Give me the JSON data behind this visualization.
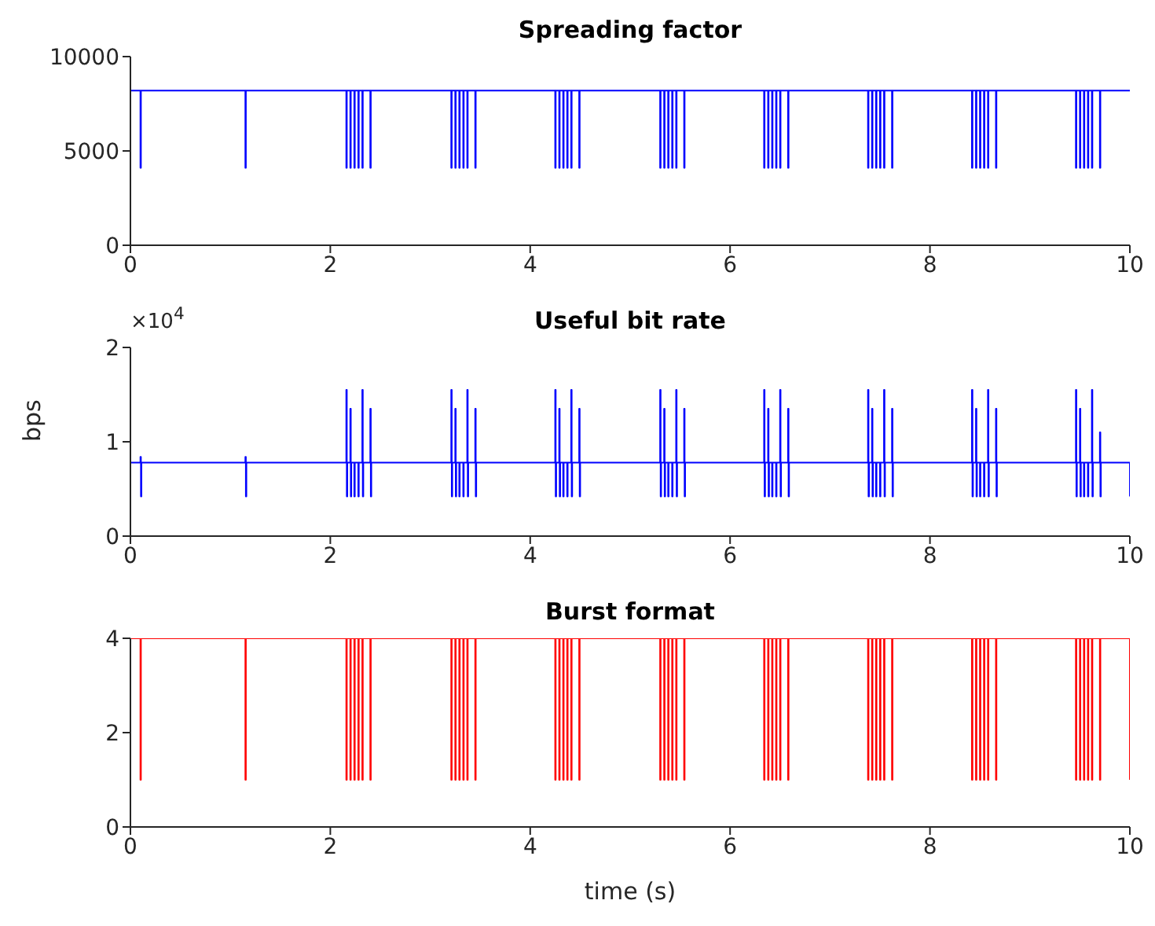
{
  "chart_data": [
    {
      "type": "step",
      "title": "Spreading factor",
      "xlim": [
        0,
        10
      ],
      "xticks": [
        0,
        2,
        4,
        6,
        8,
        10
      ],
      "ylim": [
        0,
        10000
      ],
      "yticks": [
        0,
        5000,
        10000
      ],
      "marker": "none",
      "series": [
        {
          "color": "#0000ff",
          "x": [
            0,
            0.1,
            0.105,
            1.15,
            1.155,
            2.16,
            2.165,
            2.2,
            2.205,
            2.24,
            2.245,
            2.28,
            2.285,
            2.32,
            2.325,
            2.4,
            2.405,
            3.21,
            3.215,
            3.25,
            3.255,
            3.29,
            3.295,
            3.33,
            3.335,
            3.37,
            3.375,
            3.45,
            3.455,
            4.25,
            4.255,
            4.29,
            4.295,
            4.33,
            4.335,
            4.37,
            4.375,
            4.41,
            4.415,
            4.49,
            4.495,
            5.3,
            5.305,
            5.34,
            5.345,
            5.38,
            5.385,
            5.42,
            5.425,
            5.46,
            5.465,
            5.54,
            5.545,
            6.34,
            6.345,
            6.38,
            6.385,
            6.42,
            6.425,
            6.46,
            6.465,
            6.5,
            6.505,
            6.58,
            6.585,
            7.38,
            7.385,
            7.42,
            7.425,
            7.46,
            7.465,
            7.5,
            7.505,
            7.54,
            7.545,
            7.62,
            7.625,
            8.42,
            8.425,
            8.46,
            8.465,
            8.5,
            8.505,
            8.54,
            8.545,
            8.58,
            8.585,
            8.66,
            8.665,
            9.46,
            9.465,
            9.5,
            9.505,
            9.54,
            9.545,
            9.58,
            9.585,
            9.62,
            9.625,
            9.7,
            9.705,
            10
          ],
          "values": [
            8200,
            4100,
            8200,
            4100,
            8200,
            4100,
            8200,
            4100,
            8200,
            4100,
            8200,
            4100,
            8200,
            4100,
            8200,
            4100,
            8200,
            4100,
            8200,
            4100,
            8200,
            4100,
            8200,
            4100,
            8200,
            4100,
            8200,
            4100,
            8200,
            4100,
            8200,
            4100,
            8200,
            4100,
            8200,
            4100,
            8200,
            4100,
            8200,
            4100,
            8200,
            4100,
            8200,
            4100,
            8200,
            4100,
            8200,
            4100,
            8200,
            4100,
            8200,
            4100,
            8200,
            4100,
            8200,
            4100,
            8200,
            4100,
            8200,
            4100,
            8200,
            4100,
            8200,
            4100,
            8200,
            4100,
            8200,
            4100,
            8200,
            4100,
            8200,
            4100,
            8200,
            4100,
            8200,
            4100,
            8200,
            4100,
            8200,
            4100,
            8200,
            4100,
            8200,
            4100,
            8200,
            4100,
            8200,
            4100,
            8200,
            4100,
            8200,
            4100,
            8200,
            4100,
            8200,
            4100,
            8200,
            4100,
            8200,
            4100,
            8200,
            8200
          ]
        }
      ]
    },
    {
      "type": "step",
      "title": "Useful bit rate",
      "ylabel": "bps",
      "annotations": [
        "×10$^{4}$"
      ],
      "xlim": [
        0,
        10
      ],
      "xticks": [
        0,
        2,
        4,
        6,
        8,
        10
      ],
      "ylim": [
        0,
        2
      ],
      "yticks": [
        0,
        1,
        2
      ],
      "marker": "none",
      "series": [
        {
          "color": "#0000ff",
          "x": [
            0,
            0.1,
            0.105,
            0.11,
            1.15,
            1.155,
            1.16,
            2.16,
            2.165,
            2.17,
            2.2,
            2.205,
            2.21,
            2.24,
            2.245,
            2.28,
            2.285,
            2.32,
            2.325,
            2.33,
            2.4,
            2.405,
            2.41,
            3.21,
            3.215,
            3.22,
            3.25,
            3.255,
            3.26,
            3.29,
            3.295,
            3.33,
            3.335,
            3.37,
            3.375,
            3.38,
            3.45,
            3.455,
            3.46,
            4.25,
            4.255,
            4.26,
            4.29,
            4.295,
            4.3,
            4.33,
            4.335,
            4.37,
            4.375,
            4.41,
            4.415,
            4.42,
            4.49,
            4.495,
            4.5,
            5.3,
            5.305,
            5.31,
            5.34,
            5.345,
            5.35,
            5.38,
            5.385,
            5.42,
            5.425,
            5.46,
            5.465,
            5.47,
            5.54,
            5.545,
            5.55,
            6.34,
            6.345,
            6.35,
            6.38,
            6.385,
            6.39,
            6.42,
            6.425,
            6.46,
            6.465,
            6.5,
            6.505,
            6.51,
            6.58,
            6.585,
            6.59,
            7.38,
            7.385,
            7.39,
            7.42,
            7.425,
            7.43,
            7.46,
            7.465,
            7.5,
            7.505,
            7.54,
            7.545,
            7.55,
            7.62,
            7.625,
            7.63,
            8.42,
            8.425,
            8.43,
            8.46,
            8.465,
            8.47,
            8.5,
            8.505,
            8.54,
            8.545,
            8.58,
            8.585,
            8.59,
            8.66,
            8.665,
            8.67,
            9.46,
            9.465,
            9.47,
            9.5,
            9.505,
            9.51,
            9.54,
            9.545,
            9.58,
            9.585,
            9.62,
            9.625,
            9.63,
            9.7,
            9.705,
            9.71,
            10
          ],
          "values": [
            0.78,
            0.84,
            0.42,
            0.78,
            0.84,
            0.42,
            0.78,
            1.55,
            0.42,
            0.78,
            1.35,
            0.42,
            0.78,
            0.42,
            0.78,
            0.42,
            0.78,
            1.55,
            0.42,
            0.78,
            1.35,
            0.42,
            0.78,
            1.55,
            0.42,
            0.78,
            1.35,
            0.42,
            0.78,
            0.42,
            0.78,
            0.42,
            0.78,
            1.55,
            0.42,
            0.78,
            1.35,
            0.42,
            0.78,
            1.55,
            0.42,
            0.78,
            1.35,
            0.42,
            0.78,
            0.42,
            0.78,
            0.42,
            0.78,
            1.55,
            0.42,
            0.78,
            1.35,
            0.42,
            0.78,
            1.55,
            0.42,
            0.78,
            1.35,
            0.42,
            0.78,
            0.42,
            0.78,
            0.42,
            0.78,
            1.55,
            0.42,
            0.78,
            1.35,
            0.42,
            0.78,
            1.55,
            0.42,
            0.78,
            1.35,
            0.42,
            0.78,
            0.42,
            0.78,
            0.42,
            0.78,
            1.55,
            0.42,
            0.78,
            1.35,
            0.42,
            0.78,
            1.55,
            0.42,
            0.78,
            1.35,
            0.42,
            0.78,
            0.42,
            0.78,
            0.42,
            0.78,
            1.55,
            0.42,
            0.78,
            1.35,
            0.42,
            0.78,
            1.55,
            0.42,
            0.78,
            1.35,
            0.42,
            0.78,
            0.42,
            0.78,
            0.42,
            0.78,
            1.55,
            0.42,
            0.78,
            1.35,
            0.42,
            0.78,
            1.55,
            0.42,
            0.78,
            1.35,
            0.42,
            0.78,
            0.42,
            0.78,
            0.42,
            0.78,
            1.55,
            0.42,
            0.78,
            1.1,
            0.42,
            0.78,
            0.42
          ]
        }
      ]
    },
    {
      "type": "step",
      "title": "Burst format",
      "xlabel": "time (s)",
      "xlim": [
        0,
        10
      ],
      "xticks": [
        0,
        2,
        4,
        6,
        8,
        10
      ],
      "ylim": [
        0,
        4
      ],
      "yticks": [
        0,
        2,
        4
      ],
      "marker": "none",
      "series": [
        {
          "color": "#ff0000",
          "x": [
            0,
            0.1,
            0.105,
            1.15,
            1.155,
            2.16,
            2.165,
            2.2,
            2.205,
            2.24,
            2.245,
            2.28,
            2.285,
            2.32,
            2.325,
            2.4,
            2.405,
            3.21,
            3.215,
            3.25,
            3.255,
            3.29,
            3.295,
            3.33,
            3.335,
            3.37,
            3.375,
            3.45,
            3.455,
            4.25,
            4.255,
            4.29,
            4.295,
            4.33,
            4.335,
            4.37,
            4.375,
            4.41,
            4.415,
            4.49,
            4.495,
            5.3,
            5.305,
            5.34,
            5.345,
            5.38,
            5.385,
            5.42,
            5.425,
            5.46,
            5.465,
            5.54,
            5.545,
            6.34,
            6.345,
            6.38,
            6.385,
            6.42,
            6.425,
            6.46,
            6.465,
            6.5,
            6.505,
            6.58,
            6.585,
            7.38,
            7.385,
            7.42,
            7.425,
            7.46,
            7.465,
            7.5,
            7.505,
            7.54,
            7.545,
            7.62,
            7.625,
            8.42,
            8.425,
            8.46,
            8.465,
            8.5,
            8.505,
            8.54,
            8.545,
            8.58,
            8.585,
            8.66,
            8.665,
            9.46,
            9.465,
            9.5,
            9.505,
            9.54,
            9.545,
            9.58,
            9.585,
            9.62,
            9.625,
            9.7,
            9.705,
            10
          ],
          "values": [
            4,
            1,
            4,
            1,
            4,
            1,
            4,
            1,
            4,
            1,
            4,
            1,
            4,
            1,
            4,
            1,
            4,
            1,
            4,
            1,
            4,
            1,
            4,
            1,
            4,
            1,
            4,
            1,
            4,
            1,
            4,
            1,
            4,
            1,
            4,
            1,
            4,
            1,
            4,
            1,
            4,
            1,
            4,
            1,
            4,
            1,
            4,
            1,
            4,
            1,
            4,
            1,
            4,
            1,
            4,
            1,
            4,
            1,
            4,
            1,
            4,
            1,
            4,
            1,
            4,
            1,
            4,
            1,
            4,
            1,
            4,
            1,
            4,
            1,
            4,
            1,
            4,
            1,
            4,
            1,
            4,
            1,
            4,
            1,
            4,
            1,
            4,
            1,
            4,
            1,
            4,
            1,
            4,
            1,
            4,
            1,
            4,
            1,
            4,
            1,
            4,
            1
          ]
        }
      ]
    }
  ]
}
